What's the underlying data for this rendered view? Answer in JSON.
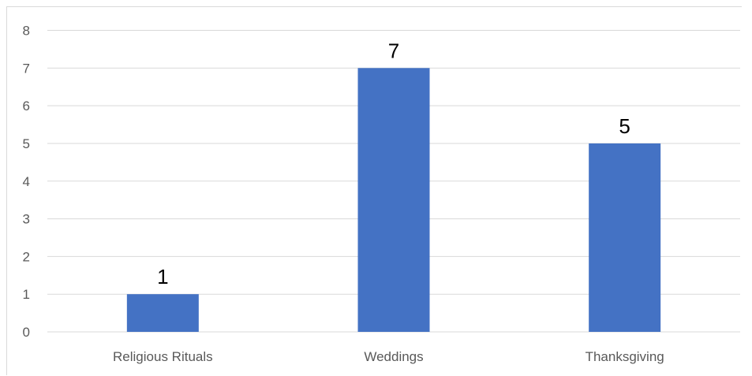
{
  "chart_data": {
    "type": "bar",
    "categories": [
      "Religious Rituals",
      "Weddings",
      "Thanksgiving"
    ],
    "values": [
      1,
      7,
      5
    ],
    "data_labels": [
      "1",
      "7",
      "5"
    ],
    "ylim": [
      0,
      8
    ],
    "yticks": [
      "0",
      "1",
      "2",
      "3",
      "4",
      "5",
      "6",
      "7",
      "8"
    ],
    "grid": true,
    "legend": "none",
    "bar_color": "#4472C4",
    "grid_color": "#d9d9d9"
  }
}
